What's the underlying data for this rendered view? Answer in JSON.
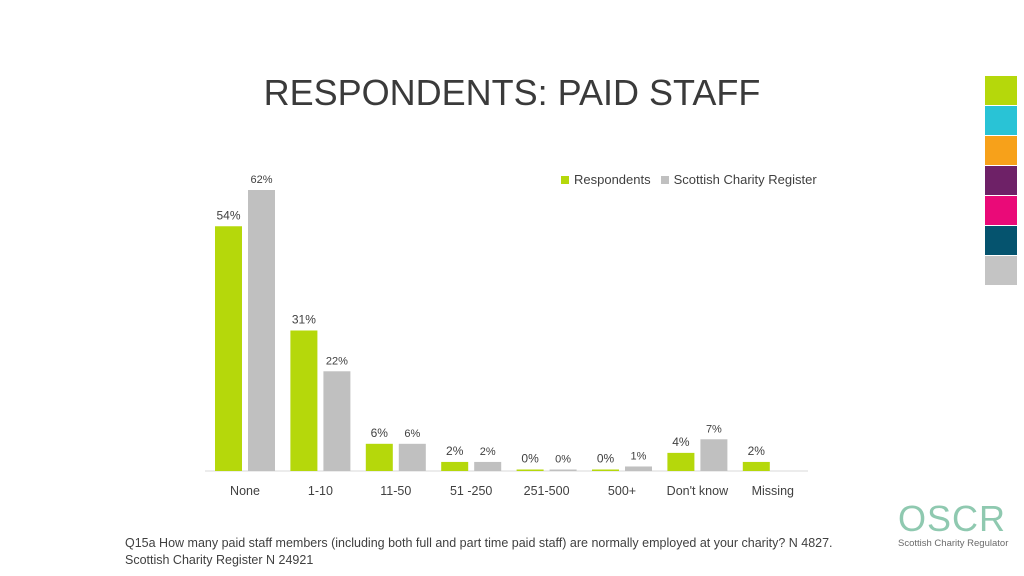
{
  "slide": {
    "title": "RESPONDENTS: PAID STAFF",
    "footnote_line1": "Q15a How many paid staff members (including both full and part time paid staff) are normally employed at your charity? N 4827.",
    "footnote_line2": "Scottish Charity Register N 24921"
  },
  "logo": {
    "name": "OSCR",
    "subtitle": "Scottish Charity Regulator"
  },
  "swatch_colors": [
    "#b5d80b",
    "#29c3d6",
    "#f7a11a",
    "#6e2167",
    "#ea0a78",
    "#05536e",
    "#c4c4c4"
  ],
  "chart_data": {
    "type": "bar",
    "categories": [
      "None",
      "1-10",
      "11-50",
      "51 -250",
      "251-500",
      "500+",
      "Don't know",
      "Missing"
    ],
    "series": [
      {
        "name": "Respondents",
        "color": "#b5d80b",
        "values": [
          54,
          31,
          6,
          2,
          0,
          0,
          4,
          2
        ],
        "labels": [
          "54%",
          "31%",
          "6%",
          "2%",
          "0%",
          "0%",
          "4%",
          "2%"
        ]
      },
      {
        "name": "Scottish Charity Register",
        "color": "#c0c0c0",
        "values": [
          62,
          22,
          6,
          2,
          0,
          1,
          7,
          null
        ],
        "labels": [
          "62%",
          "22%",
          "6%",
          "2%",
          "0%",
          "1%",
          "7%",
          ""
        ]
      }
    ],
    "ylim": [
      0,
      62
    ],
    "legend_position": "top-right",
    "grid": false
  }
}
